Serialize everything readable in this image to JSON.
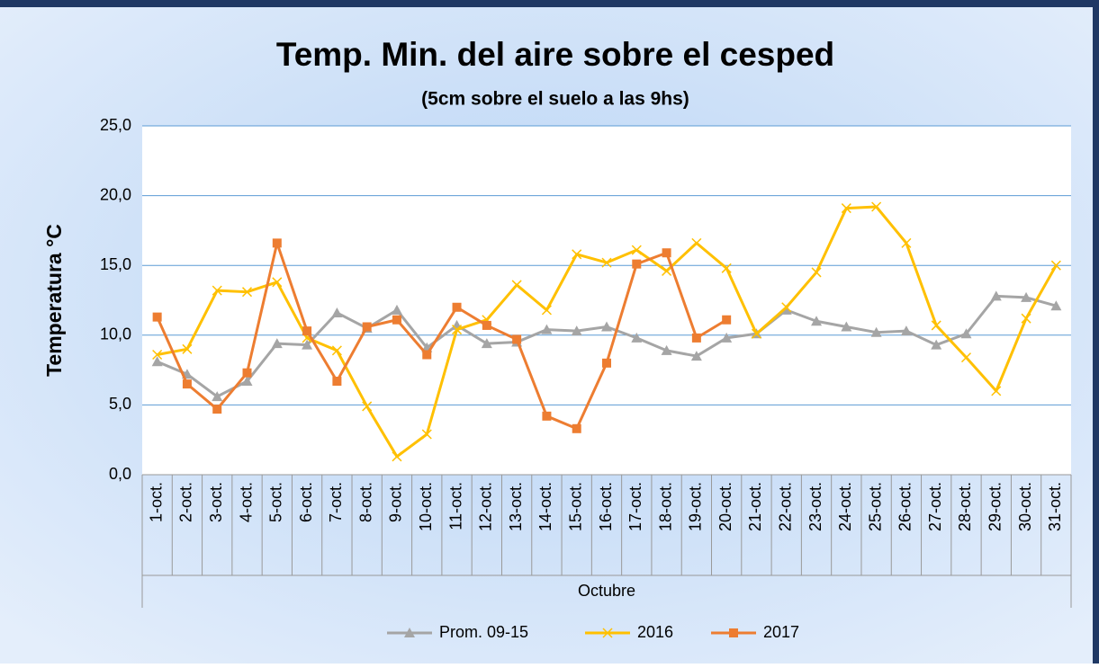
{
  "chart_data": {
    "type": "line",
    "title": "Temp. Min. del aire sobre el cesped",
    "subtitle": "(5cm sobre el suelo a las 9hs)",
    "ylabel": "Temperatura °C",
    "xlabel": "Octubre",
    "categories": [
      "1-oct.",
      "2-oct.",
      "3-oct.",
      "4-oct.",
      "5-oct.",
      "6-oct.",
      "7-oct.",
      "8-oct.",
      "9-oct.",
      "10-oct.",
      "11-oct.",
      "12-oct.",
      "13-oct.",
      "14-oct.",
      "15-oct.",
      "16-oct.",
      "17-oct.",
      "18-oct.",
      "19-oct.",
      "20-oct.",
      "21-oct.",
      "22-oct.",
      "23-oct.",
      "24-oct.",
      "25-oct.",
      "26-oct.",
      "27-oct.",
      "28-oct.",
      "29-oct.",
      "30-oct.",
      "31-oct."
    ],
    "series": [
      {
        "name": "Prom. 09-15",
        "color": "#a5a5a5",
        "marker": "triangle",
        "values": [
          8.1,
          7.2,
          5.6,
          6.7,
          9.4,
          9.3,
          11.6,
          10.5,
          11.8,
          9.1,
          10.7,
          9.4,
          9.5,
          10.4,
          10.3,
          10.6,
          9.8,
          8.9,
          8.5,
          9.8,
          10.1,
          11.8,
          11.0,
          10.6,
          10.2,
          10.3,
          9.3,
          10.1,
          12.8,
          12.7,
          12.1
        ]
      },
      {
        "name": "2016",
        "color": "#ffc000",
        "marker": "x",
        "values": [
          8.6,
          9.0,
          13.2,
          13.1,
          13.8,
          9.8,
          8.9,
          4.9,
          1.3,
          2.9,
          10.4,
          11.1,
          13.6,
          11.8,
          15.8,
          15.2,
          16.1,
          14.6,
          16.6,
          14.8,
          10.1,
          12.0,
          14.5,
          19.1,
          19.2,
          16.6,
          10.7,
          8.4,
          6.0,
          11.2,
          15.0
        ]
      },
      {
        "name": "2017",
        "color": "#ed7d31",
        "marker": "square",
        "values": [
          11.3,
          6.5,
          4.7,
          7.3,
          16.6,
          10.3,
          6.7,
          10.6,
          11.1,
          8.6,
          12.0,
          10.7,
          9.7,
          4.2,
          3.3,
          8.0,
          15.1,
          15.9,
          9.8,
          11.1,
          null,
          null,
          null,
          null,
          null,
          null,
          null,
          null,
          null,
          null,
          null
        ]
      }
    ],
    "ylim": [
      0,
      25
    ],
    "yticks": [
      {
        "value": 0,
        "label": "0,0"
      },
      {
        "value": 5,
        "label": "5,0"
      },
      {
        "value": 10,
        "label": "10,0"
      },
      {
        "value": 15,
        "label": "15,0"
      },
      {
        "value": 20,
        "label": "20,0"
      },
      {
        "value": 25,
        "label": "25,0"
      }
    ],
    "grid": true,
    "legend": "bottom"
  }
}
